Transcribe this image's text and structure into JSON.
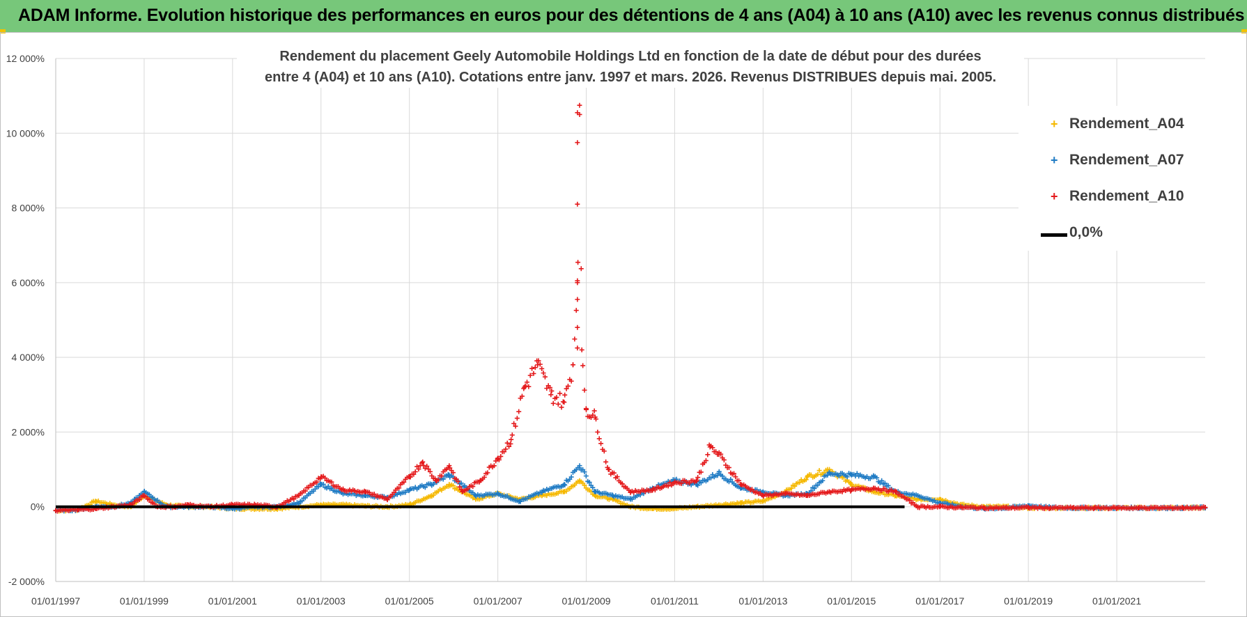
{
  "banner": {
    "title": "ADAM Informe. Evolution historique des performances en euros pour des détentions de 4 ans (A04) à 10 ans (A10) avec les revenus connus distribués"
  },
  "chart_data": {
    "type": "scatter",
    "title_line1": "Rendement du placement Geely Automobile Holdings Ltd en fonction de la date de début pour des durées",
    "title_line2": "entre 4 (A04) et 10 ans (A10).  Cotations entre janv. 1997 et mars. 2026.  Revenus DISTRIBUES depuis mai. 2005.",
    "xlabel": "",
    "ylabel": "",
    "xlim": [
      1997.0,
      2023.0
    ],
    "ylim": [
      -2000,
      12000
    ],
    "x_ticks": [
      1997,
      1999,
      2001,
      2003,
      2005,
      2007,
      2009,
      2011,
      2013,
      2015,
      2017,
      2019,
      2021
    ],
    "x_tick_labels": [
      "01/01/1997",
      "01/01/1999",
      "01/01/2001",
      "01/01/2003",
      "01/01/2005",
      "01/01/2007",
      "01/01/2009",
      "01/01/2011",
      "01/01/2013",
      "01/01/2015",
      "01/01/2017",
      "01/01/2019",
      "01/01/2021"
    ],
    "y_ticks": [
      -2000,
      0,
      2000,
      4000,
      6000,
      8000,
      10000,
      12000
    ],
    "y_tick_labels": [
      "-2 000%",
      "0%",
      "2 000%",
      "4 000%",
      "6 000%",
      "8 000%",
      "10 000%",
      "12 000%"
    ],
    "grid": true,
    "legend_position": "top-right",
    "series": [
      {
        "name": "Rendement_A04",
        "color": "#f5b800",
        "marker": "+",
        "x": [
          1997.0,
          1997.5,
          1997.9,
          1998.3,
          1998.7,
          1999.0,
          1999.5,
          2000.0,
          2000.5,
          2001.0,
          2001.5,
          2002.0,
          2002.5,
          2003.0,
          2003.5,
          2004.0,
          2004.5,
          2005.0,
          2005.5,
          2005.9,
          2006.5,
          2007.0,
          2007.5,
          2008.0,
          2008.5,
          2008.85,
          2009.2,
          2009.6,
          2010.0,
          2010.5,
          2011.0,
          2011.5,
          2012.0,
          2012.5,
          2013.0,
          2013.5,
          2014.0,
          2014.5,
          2015.0,
          2015.5,
          2016.0,
          2016.5,
          2017.0,
          2017.5,
          2018.0,
          2018.5,
          2019.0,
          2019.5,
          2020.0,
          2020.5,
          2021.0,
          2021.5,
          2022.0,
          2022.5,
          2023.0
        ],
        "y": [
          -100,
          -80,
          150,
          50,
          0,
          300,
          50,
          0,
          0,
          -50,
          -50,
          -50,
          0,
          50,
          50,
          20,
          0,
          50,
          300,
          600,
          200,
          350,
          200,
          300,
          400,
          700,
          300,
          200,
          0,
          -50,
          -50,
          0,
          50,
          100,
          150,
          400,
          800,
          1000,
          600,
          400,
          300,
          200,
          200,
          50,
          0,
          0,
          -30,
          -30,
          -30,
          -30,
          -30,
          -30,
          -30,
          -30,
          -20
        ]
      },
      {
        "name": "Rendement_A07",
        "color": "#1f7bc4",
        "marker": "+",
        "x": [
          1997.0,
          1997.5,
          1997.9,
          1998.3,
          1998.7,
          1999.0,
          1999.5,
          2000.0,
          2000.5,
          2001.0,
          2001.5,
          2002.0,
          2002.5,
          2003.0,
          2003.5,
          2004.0,
          2004.5,
          2005.0,
          2005.5,
          2005.9,
          2006.5,
          2007.0,
          2007.5,
          2008.0,
          2008.5,
          2008.85,
          2009.2,
          2009.6,
          2010.0,
          2010.5,
          2011.0,
          2011.5,
          2012.0,
          2012.5,
          2013.0,
          2013.5,
          2014.0,
          2014.5,
          2015.0,
          2015.5,
          2016.0,
          2016.5,
          2017.0,
          2017.5,
          2018.0,
          2018.5,
          2019.0,
          2019.5,
          2020.0,
          2020.5,
          2021.0,
          2021.5,
          2022.0,
          2022.5,
          2023.0
        ],
        "y": [
          -100,
          -80,
          0,
          0,
          100,
          400,
          0,
          0,
          0,
          -50,
          0,
          0,
          100,
          600,
          350,
          300,
          250,
          450,
          600,
          850,
          300,
          350,
          150,
          400,
          600,
          1100,
          400,
          300,
          200,
          500,
          700,
          600,
          900,
          500,
          400,
          300,
          350,
          900,
          850,
          800,
          400,
          300,
          100,
          0,
          -50,
          -30,
          30,
          -20,
          -30,
          -30,
          -30,
          -30,
          -30,
          -30,
          -20
        ]
      },
      {
        "name": "Rendement_A10",
        "color": "#e41a1c",
        "marker": "+",
        "x": [
          1997.0,
          1997.5,
          1997.9,
          1998.3,
          1998.7,
          1999.0,
          1999.3,
          1999.7,
          2000.0,
          2000.5,
          2001.0,
          2001.5,
          2002.0,
          2002.5,
          2003.0,
          2003.5,
          2004.0,
          2004.5,
          2005.0,
          2005.3,
          2005.6,
          2005.9,
          2006.2,
          2006.6,
          2007.0,
          2007.3,
          2007.6,
          2007.9,
          2008.2,
          2008.5,
          2008.7,
          2008.8,
          2008.85,
          2008.9,
          2009.0,
          2009.2,
          2009.5,
          2010.0,
          2010.5,
          2011.0,
          2011.5,
          2011.8,
          2012.0,
          2012.5,
          2013.0,
          2013.5,
          2014.0,
          2014.5,
          2015.0,
          2015.5,
          2016.0,
          2016.5,
          2017.0,
          2017.5,
          2018.0,
          2018.5,
          2019.0,
          2019.5,
          2020.0,
          2020.5,
          2021.0,
          2021.5,
          2022.0,
          2022.5,
          2023.0
        ],
        "y": [
          -100,
          -80,
          -50,
          0,
          50,
          300,
          0,
          0,
          50,
          0,
          50,
          50,
          0,
          300,
          800,
          450,
          400,
          200,
          800,
          1200,
          700,
          1100,
          400,
          700,
          1300,
          1800,
          3200,
          3800,
          3000,
          2800,
          3800,
          6000,
          10500,
          4200,
          2600,
          2400,
          1000,
          400,
          450,
          650,
          700,
          1600,
          1400,
          600,
          300,
          350,
          300,
          400,
          450,
          500,
          400,
          0,
          0,
          -20,
          -30,
          -30,
          -20,
          -30,
          -30,
          -30,
          -30,
          -30,
          -30,
          -30,
          -20
        ],
        "extra_points": {
          "x": [
            2008.8,
            2008.8,
            2008.8,
            2008.8,
            2008.8,
            2008.8,
            2008.8
          ],
          "y": [
            10550,
            9750,
            8100,
            6050,
            5550,
            4800,
            4250
          ]
        }
      },
      {
        "name": "0,0%",
        "color": "#000000",
        "marker": "line",
        "x": [
          1997.0,
          2016.2
        ],
        "y": [
          0,
          0
        ]
      }
    ]
  }
}
